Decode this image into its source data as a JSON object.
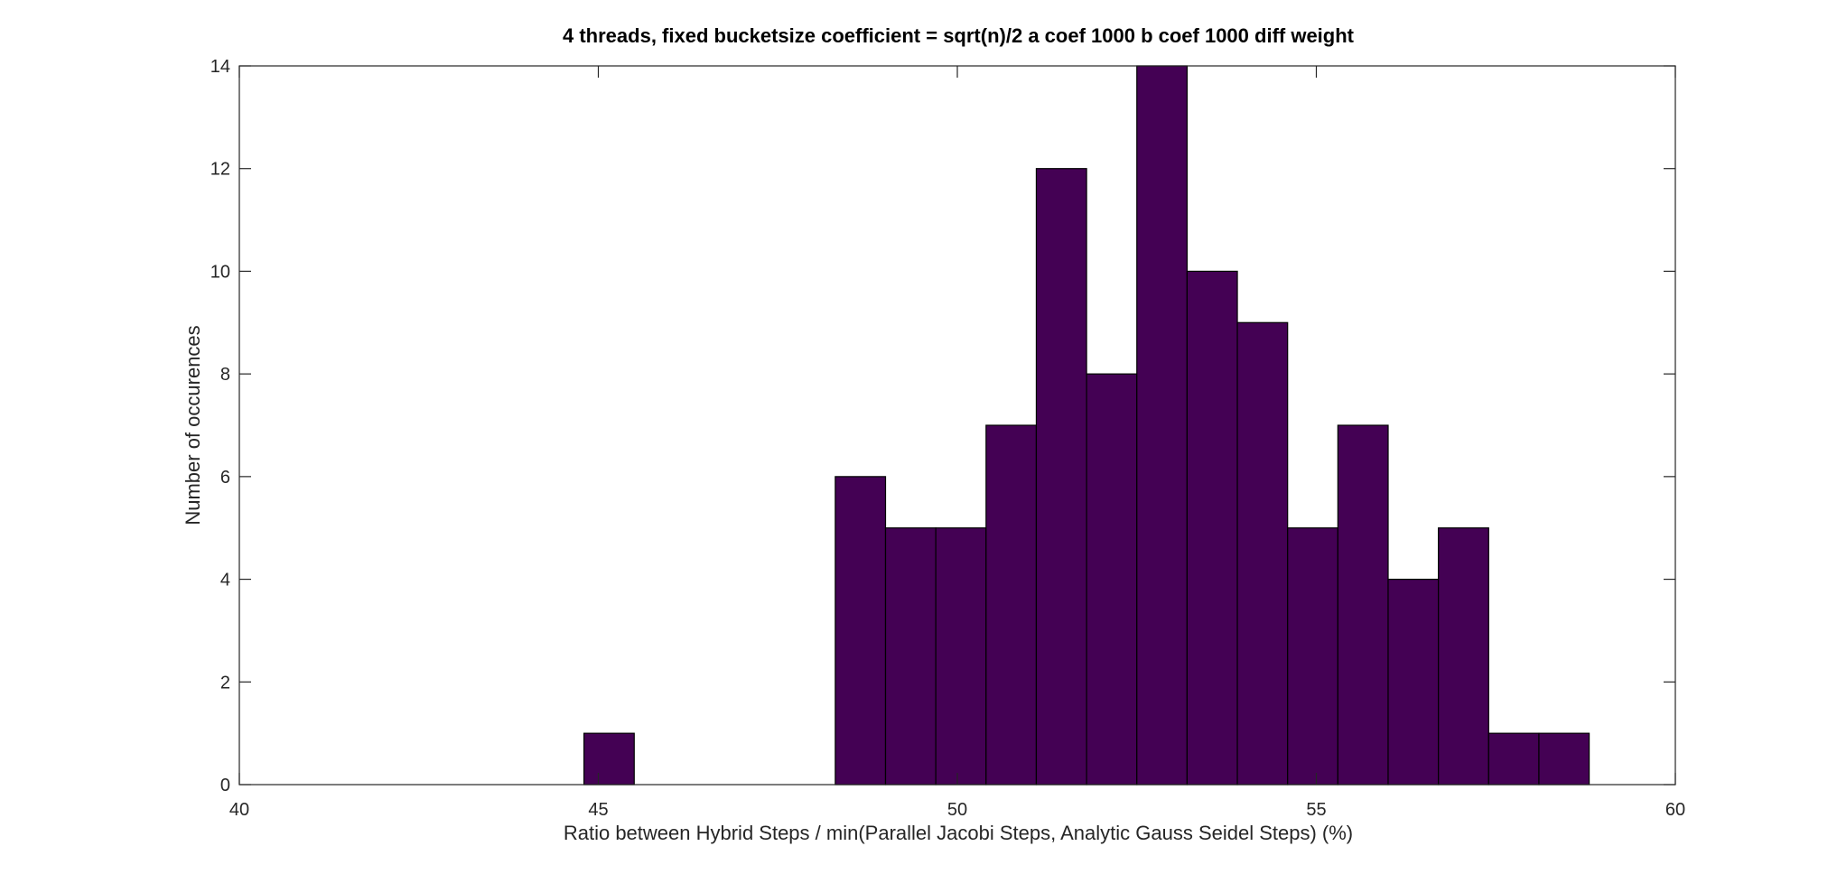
{
  "chart_data": {
    "type": "bar",
    "title": "4 threads, fixed bucketsize coefficient = sqrt(n)/2 a coef 1000 b coef 1000 diff weight",
    "xlabel": "Ratio between Hybrid Steps / min(Parallel Jacobi Steps, Analytic Gauss Seidel Steps) (%)",
    "ylabel": "Number of occurences",
    "xlim": [
      40,
      60
    ],
    "ylim": [
      0,
      14
    ],
    "xticks": [
      40,
      45,
      50,
      55,
      60
    ],
    "yticks": [
      0,
      2,
      4,
      6,
      8,
      10,
      12,
      14
    ],
    "bar_color": "#440154",
    "grid": false,
    "bars": [
      {
        "x0": 44.8,
        "x1": 45.5,
        "value": 1
      },
      {
        "x0": 48.3,
        "x1": 49.0,
        "value": 6
      },
      {
        "x0": 49.0,
        "x1": 49.7,
        "value": 5
      },
      {
        "x0": 49.7,
        "x1": 50.4,
        "value": 5
      },
      {
        "x0": 50.4,
        "x1": 51.1,
        "value": 7
      },
      {
        "x0": 51.1,
        "x1": 51.8,
        "value": 12
      },
      {
        "x0": 51.8,
        "x1": 52.5,
        "value": 8
      },
      {
        "x0": 52.5,
        "x1": 53.2,
        "value": 14
      },
      {
        "x0": 53.2,
        "x1": 53.9,
        "value": 10
      },
      {
        "x0": 53.9,
        "x1": 54.6,
        "value": 9
      },
      {
        "x0": 54.6,
        "x1": 55.3,
        "value": 5
      },
      {
        "x0": 55.3,
        "x1": 56.0,
        "value": 7
      },
      {
        "x0": 56.0,
        "x1": 56.7,
        "value": 4
      },
      {
        "x0": 56.7,
        "x1": 57.4,
        "value": 5
      },
      {
        "x0": 57.4,
        "x1": 58.1,
        "value": 1
      },
      {
        "x0": 58.1,
        "x1": 58.8,
        "value": 1
      }
    ]
  }
}
